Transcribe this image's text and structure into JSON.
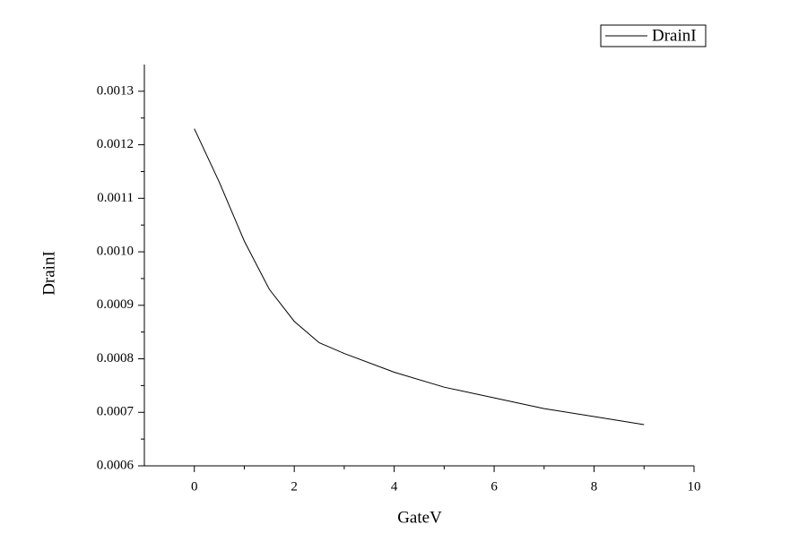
{
  "chart_data": {
    "type": "line",
    "x_label": "GateV",
    "y_label": "DrainI",
    "x": [
      0,
      0.5,
      1,
      1.5,
      2,
      2.5,
      3,
      4,
      5,
      6,
      7,
      8,
      9
    ],
    "series": [
      {
        "name": "DrainI",
        "color": "#000000",
        "values": [
          0.00123,
          0.00113,
          0.00102,
          0.00093,
          0.00087,
          0.00083,
          0.00081,
          0.000775,
          0.000747,
          0.000727,
          0.000707,
          0.000692,
          0.000677
        ]
      }
    ],
    "xlim": [
      -1,
      10
    ],
    "xticks": [
      0,
      2,
      4,
      6,
      8,
      10
    ],
    "ylim": [
      0.0006,
      0.00135
    ],
    "yticks": [
      0.0006,
      0.0007,
      0.0008,
      0.0009,
      {
        "value": 0.001,
        "label": "0.0010"
      },
      0.0011,
      0.0012,
      0.0013
    ],
    "legend": "top-right",
    "grid": false
  }
}
